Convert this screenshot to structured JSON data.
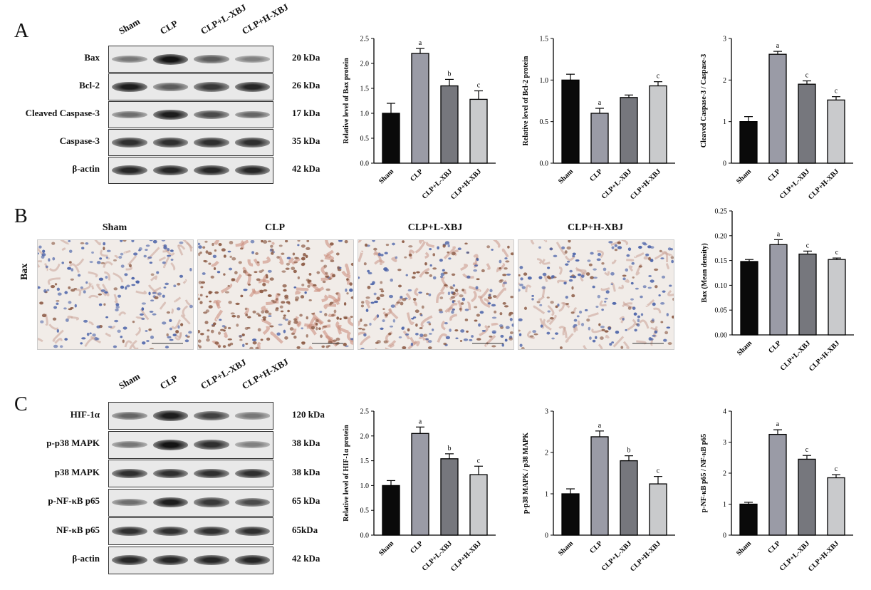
{
  "panels": {
    "A": {
      "letter": "A",
      "lanes": [
        "Sham",
        "CLP",
        "CLP+L-XBJ",
        "CLP+H-XBJ"
      ],
      "blots": [
        {
          "label": "Bax",
          "kda": "20 kDa",
          "bands": [
            0.45,
            1.0,
            0.6,
            0.4
          ]
        },
        {
          "label": "Bcl-2",
          "kda": "26 kDa",
          "bands": [
            0.95,
            0.6,
            0.8,
            0.9
          ]
        },
        {
          "label": "Cleaved Caspase-3",
          "kda": "17 kDa",
          "bands": [
            0.5,
            0.95,
            0.7,
            0.55
          ]
        },
        {
          "label": "Caspase-3",
          "kda": "35 kDa",
          "bands": [
            0.85,
            0.85,
            0.85,
            0.85
          ]
        },
        {
          "label": "β-actin",
          "kda": "42 kDa",
          "bands": [
            0.9,
            0.9,
            0.9,
            0.9
          ]
        }
      ]
    },
    "B": {
      "letter": "B",
      "row_label": "Bax",
      "groups": [
        "Sham",
        "CLP",
        "CLP+L-XBJ",
        "CLP+H-XBJ"
      ],
      "stain_level": [
        0.2,
        0.85,
        0.5,
        0.25
      ]
    },
    "C": {
      "letter": "C",
      "lanes": [
        "Sham",
        "CLP",
        "CLP+L-XBJ",
        "CLP+H-XBJ"
      ],
      "blots": [
        {
          "label": "HIF-1α",
          "kda": "120 kDa",
          "bands": [
            0.55,
            0.95,
            0.75,
            0.45
          ]
        },
        {
          "label": "p-p38 MAPK",
          "kda": "38 kDa",
          "bands": [
            0.45,
            1.0,
            0.85,
            0.4
          ]
        },
        {
          "label": "p38 MAPK",
          "kda": "38 kDa",
          "bands": [
            0.85,
            0.85,
            0.85,
            0.85
          ]
        },
        {
          "label": "p-NF-κB p65",
          "kda": "65 kDa",
          "bands": [
            0.5,
            0.95,
            0.8,
            0.7
          ]
        },
        {
          "label": "NF-κB p65",
          "kda": "65kDa",
          "bands": [
            0.85,
            0.85,
            0.85,
            0.85
          ]
        },
        {
          "label": "β-actin",
          "kda": "42 kDa",
          "bands": [
            0.9,
            0.9,
            0.9,
            0.9
          ]
        }
      ]
    }
  },
  "chart_data": [
    {
      "type": "bar",
      "categories": [
        "Sham",
        "CLP",
        "CLP+L-XBJ",
        "CLP+H-XBJ"
      ],
      "values": [
        1.0,
        2.2,
        1.55,
        1.28
      ],
      "errors": [
        0.2,
        0.1,
        0.13,
        0.17
      ],
      "letters": [
        "",
        "a",
        "b",
        "c"
      ],
      "ylabel": "Relative level of Bax protein",
      "ylim": [
        0,
        2.5
      ],
      "yticks": [
        "0.0",
        "0.5",
        "1.0",
        "1.5",
        "2.0",
        "2.5"
      ]
    },
    {
      "type": "bar",
      "categories": [
        "Sham",
        "CLP",
        "CLP+L-XBJ",
        "CLP+H-XBJ"
      ],
      "values": [
        1.0,
        0.6,
        0.79,
        0.93
      ],
      "errors": [
        0.07,
        0.06,
        0.03,
        0.05
      ],
      "letters": [
        "",
        "a",
        "",
        "c"
      ],
      "ylabel": "Relative level of Bcl-2 protein",
      "ylim": [
        0,
        1.5
      ],
      "yticks": [
        "0.0",
        "0.5",
        "1.0",
        "1.5"
      ]
    },
    {
      "type": "bar",
      "categories": [
        "Sham",
        "CLP",
        "CLP+L-XBJ",
        "CLP+H-XBJ"
      ],
      "values": [
        1.0,
        2.62,
        1.9,
        1.52
      ],
      "errors": [
        0.12,
        0.07,
        0.08,
        0.08
      ],
      "letters": [
        "",
        "a",
        "c",
        "c"
      ],
      "ylabel": "Cleaved Caspase-3 / Caspase-3",
      "ylim": [
        0,
        3
      ],
      "yticks": [
        "0",
        "1",
        "2",
        "3"
      ]
    },
    {
      "type": "bar",
      "categories": [
        "Sham",
        "CLP",
        "CLP+L-XBJ",
        "CLP+H-XBJ"
      ],
      "values": [
        0.148,
        0.182,
        0.163,
        0.152
      ],
      "errors": [
        0.004,
        0.01,
        0.006,
        0.003
      ],
      "letters": [
        "",
        "a",
        "c",
        "c"
      ],
      "ylabel": "Bax (Mean density)",
      "ylim": [
        0,
        0.25
      ],
      "yticks": [
        "0.00",
        "0.05",
        "0.10",
        "0.15",
        "0.20",
        "0.25"
      ]
    },
    {
      "type": "bar",
      "categories": [
        "Sham",
        "CLP",
        "CLP+L-XBJ",
        "CLP+H-XBJ"
      ],
      "values": [
        1.0,
        2.05,
        1.54,
        1.22
      ],
      "errors": [
        0.1,
        0.13,
        0.1,
        0.17
      ],
      "letters": [
        "",
        "a",
        "b",
        "c"
      ],
      "ylabel": "Relative level of HIF-1α protein",
      "ylim": [
        0,
        2.5
      ],
      "yticks": [
        "0.0",
        "0.5",
        "1.0",
        "1.5",
        "2.0",
        "2.5"
      ]
    },
    {
      "type": "bar",
      "categories": [
        "Sham",
        "CLP",
        "CLP+L-XBJ",
        "CLP+H-XBJ"
      ],
      "values": [
        1.0,
        2.38,
        1.8,
        1.24
      ],
      "errors": [
        0.12,
        0.14,
        0.12,
        0.18
      ],
      "letters": [
        "",
        "a",
        "b",
        "c"
      ],
      "ylabel": "p-p38 MAPK / p38 MAPK",
      "ylim": [
        0,
        3
      ],
      "yticks": [
        "0",
        "1",
        "2",
        "3"
      ]
    },
    {
      "type": "bar",
      "categories": [
        "Sham",
        "CLP",
        "CLP+L-XBJ",
        "CLP+H-XBJ"
      ],
      "values": [
        1.0,
        3.25,
        2.45,
        1.85
      ],
      "errors": [
        0.06,
        0.15,
        0.12,
        0.1
      ],
      "letters": [
        "",
        "a",
        "c",
        "c"
      ],
      "ylabel": "p-NF-κB p65 / NF-κB p65",
      "ylim": [
        0,
        4
      ],
      "yticks": [
        "0",
        "1",
        "2",
        "3",
        "4"
      ]
    }
  ],
  "colors": {
    "bar_fills": [
      "#0a0a0a",
      "#9a9ba6",
      "#76777d",
      "#c9cacc"
    ],
    "stain_brown": "#8b5a44",
    "stain_blue": "#4a62a8"
  }
}
